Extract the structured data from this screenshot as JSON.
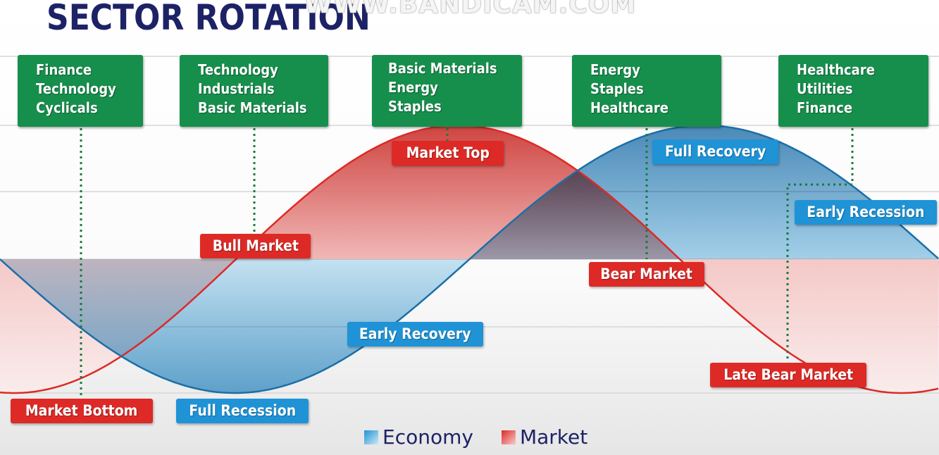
{
  "title": "SECTOR ROTATION",
  "watermark": "WWW.BANDICAM.COM",
  "colors": {
    "title": "#1d2266",
    "sector_box": "#168f4c",
    "market": "#dd2a26",
    "economy": "#1f93d6",
    "dotted_line": "#1a7a3e"
  },
  "sector_boxes": [
    {
      "lines": [
        "Finance",
        "Technology",
        "Cyclicals"
      ]
    },
    {
      "lines": [
        "Technology",
        "Industrials",
        "Basic Materials"
      ]
    },
    {
      "lines": [
        "Basic Materials",
        "Energy",
        "Staples"
      ]
    },
    {
      "lines": [
        "Energy",
        "Staples",
        "Healthcare"
      ]
    },
    {
      "lines": [
        "Healthcare",
        "Utilities",
        "Finance"
      ]
    }
  ],
  "market_stages": [
    "Market Bottom",
    "Bull Market",
    "Market Top",
    "Bear Market",
    "Late Bear Market"
  ],
  "economy_stages": [
    "Full Recession",
    "Early Recovery",
    "Full Recovery",
    "Early Recession"
  ],
  "chart_data": {
    "type": "area",
    "series": [
      {
        "name": "Economy",
        "color": "#1f93d6"
      },
      {
        "name": "Market",
        "color": "#dd2a26"
      }
    ],
    "legend_position": "bottom",
    "grid": true
  }
}
